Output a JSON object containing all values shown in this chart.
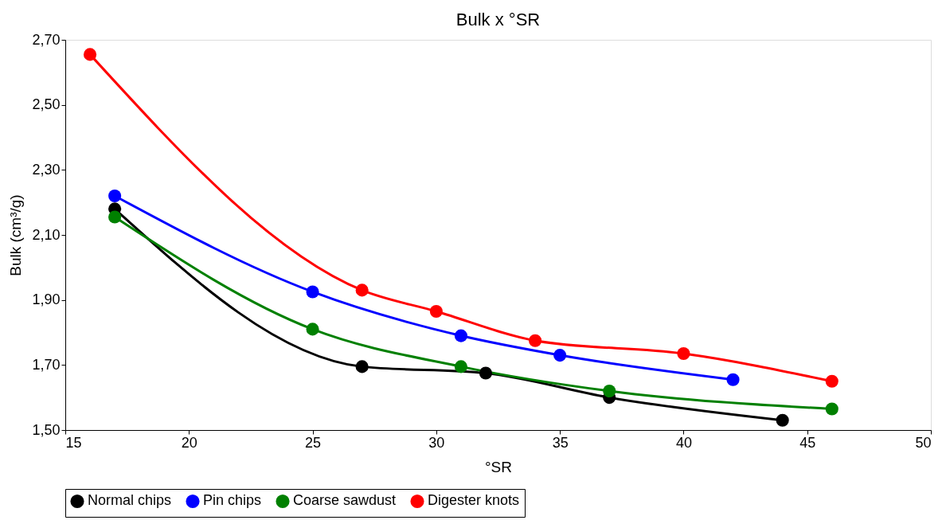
{
  "chart_data": {
    "type": "line",
    "title": "Bulk x °SR",
    "xlabel": "°SR",
    "ylabel": "Bulk (cm³/g)",
    "xlim": [
      15,
      50
    ],
    "xticks": [
      15,
      20,
      25,
      30,
      35,
      40,
      45,
      50
    ],
    "ylim": [
      1.5,
      2.7
    ],
    "yticks": [
      {
        "value": 1.5,
        "label": "1,50"
      },
      {
        "value": 1.7,
        "label": "1,70"
      },
      {
        "value": 1.9,
        "label": "1,90"
      },
      {
        "value": 2.1,
        "label": "2,10"
      },
      {
        "value": 2.3,
        "label": "2,30"
      },
      {
        "value": 2.5,
        "label": "2,50"
      },
      {
        "value": 2.7,
        "label": "2,70"
      }
    ],
    "grid": false,
    "legend": "bottom",
    "marker": "circle",
    "line_style": "solid",
    "series": [
      {
        "name": "Normal chips",
        "color": "#000000",
        "x": [
          17,
          27,
          32,
          37,
          44
        ],
        "values": [
          2.18,
          1.695,
          1.675,
          1.6,
          1.53
        ]
      },
      {
        "name": "Pin chips",
        "color": "#0000ff",
        "x": [
          17,
          25,
          31,
          35,
          42
        ],
        "values": [
          2.22,
          1.925,
          1.79,
          1.73,
          1.655
        ]
      },
      {
        "name": "Coarse sawdust",
        "color": "#008000",
        "x": [
          17,
          25,
          31,
          37,
          46
        ],
        "values": [
          2.155,
          1.81,
          1.695,
          1.62,
          1.565
        ]
      },
      {
        "name": "Digester knots",
        "color": "#ff0000",
        "x": [
          16,
          27,
          30,
          34,
          40,
          46
        ],
        "values": [
          2.655,
          1.93,
          1.865,
          1.775,
          1.735,
          1.65
        ]
      }
    ]
  }
}
